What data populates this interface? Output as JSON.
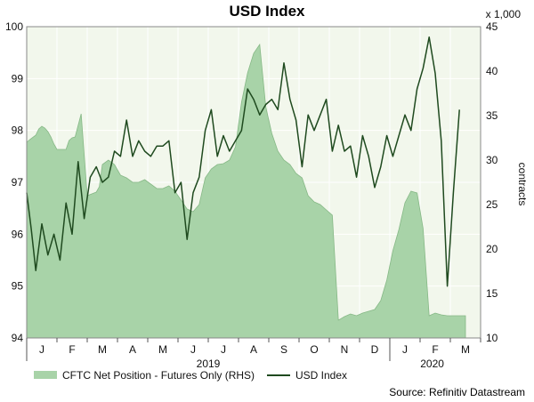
{
  "chart_data": {
    "type": "line",
    "title": "USD Index",
    "y2_multiplier_label": "x 1,000",
    "y2_label": "contracts",
    "x_month_labels": [
      "J",
      "F",
      "M",
      "A",
      "M",
      "J",
      "J",
      "A",
      "S",
      "O",
      "N",
      "D",
      "J",
      "F",
      "M"
    ],
    "x_year_labels": [
      "2019",
      "2020"
    ],
    "ylim_left": [
      94,
      100
    ],
    "yticks_left": [
      94,
      95,
      96,
      97,
      98,
      99,
      100
    ],
    "ylim_right": [
      10,
      45
    ],
    "yticks_right": [
      10,
      15,
      20,
      25,
      30,
      35,
      40,
      45
    ],
    "grid": true,
    "legend_position": "bottom-left",
    "series": [
      {
        "name": "CFTC Net Position - Futures Only (RHS)",
        "type": "area",
        "axis": "right",
        "color": "#a8d3a8",
        "x": [
          0,
          0.1,
          0.3,
          0.4,
          0.5,
          0.6,
          0.7,
          0.8,
          0.9,
          1,
          1.3,
          1.4,
          1.5,
          1.6,
          1.8,
          2,
          2.3,
          2.4,
          2.5,
          2.7,
          2.9,
          3.1,
          3.3,
          3.5,
          3.7,
          3.9,
          4.1,
          4.3,
          4.5,
          4.7,
          4.9,
          5.1,
          5.3,
          5.5,
          5.7,
          5.9,
          6.1,
          6.3,
          6.5,
          6.7,
          6.9,
          7.1,
          7.3,
          7.5,
          7.7,
          7.9,
          8.1,
          8.3,
          8.5,
          8.7,
          8.9,
          9.1,
          9.3,
          9.5,
          9.7,
          9.9,
          10.1,
          10.3,
          10.5,
          10.7,
          10.9,
          11.1,
          11.3,
          11.5,
          11.7,
          11.9,
          12.1,
          12.3,
          12.5,
          12.7,
          12.9,
          13.1,
          13.3,
          13.5,
          13.7,
          13.9,
          14.1,
          14.3,
          14.5
        ],
        "values": [
          32,
          32.3,
          32.8,
          33.5,
          33.8,
          33.6,
          33.2,
          32.6,
          31.8,
          31.2,
          31.2,
          32.2,
          32.5,
          32.6,
          35.2,
          26,
          26.4,
          27,
          29.5,
          30,
          29.5,
          28.3,
          28,
          27.5,
          27.5,
          27.8,
          27.3,
          26.8,
          26.8,
          27.1,
          26.5,
          25.5,
          24.5,
          24.2,
          25,
          28,
          29,
          29.5,
          29.6,
          30,
          31.5,
          36.5,
          39.8,
          42,
          43,
          36,
          33,
          31,
          30,
          29.5,
          28.5,
          28,
          26,
          25.3,
          25,
          24.4,
          23.8,
          12,
          12.4,
          12.7,
          12.5,
          12.8,
          13,
          13.2,
          14.2,
          16.5,
          19.8,
          22.2,
          25.2,
          26.5,
          26.3,
          22.3,
          12.5,
          12.8,
          12.6,
          12.5,
          12.5,
          12.5,
          12.5
        ]
      },
      {
        "name": "USD Index",
        "type": "line",
        "axis": "left",
        "color": "#1f4a1f",
        "x": [
          0,
          0.15,
          0.3,
          0.5,
          0.7,
          0.9,
          1.1,
          1.3,
          1.5,
          1.7,
          1.9,
          2.1,
          2.3,
          2.5,
          2.7,
          2.9,
          3.1,
          3.3,
          3.5,
          3.7,
          3.9,
          4.1,
          4.3,
          4.5,
          4.7,
          4.9,
          5.1,
          5.3,
          5.5,
          5.7,
          5.9,
          6.1,
          6.3,
          6.5,
          6.7,
          6.9,
          7.1,
          7.3,
          7.5,
          7.7,
          7.9,
          8.1,
          8.3,
          8.5,
          8.7,
          8.9,
          9.1,
          9.3,
          9.5,
          9.7,
          9.9,
          10.1,
          10.3,
          10.5,
          10.7,
          10.9,
          11.1,
          11.3,
          11.5,
          11.7,
          11.9,
          12.1,
          12.3,
          12.5,
          12.7,
          12.9,
          13.1,
          13.3,
          13.5,
          13.7,
          13.9,
          14.1,
          14.3
        ],
        "values": [
          96.8,
          96.1,
          95.3,
          96.2,
          95.6,
          96.0,
          95.5,
          96.6,
          96.0,
          97.4,
          96.3,
          97.1,
          97.3,
          97.0,
          97.1,
          97.6,
          97.5,
          98.2,
          97.5,
          97.8,
          97.6,
          97.5,
          97.7,
          97.7,
          97.8,
          96.8,
          97.0,
          95.9,
          96.8,
          97.1,
          98.0,
          98.4,
          97.5,
          97.9,
          97.6,
          97.8,
          98.0,
          98.8,
          98.6,
          98.3,
          98.5,
          98.6,
          98.4,
          99.3,
          98.6,
          98.2,
          97.3,
          98.3,
          98.0,
          98.3,
          98.6,
          97.6,
          98.1,
          97.6,
          97.7,
          97.1,
          97.9,
          97.5,
          96.9,
          97.3,
          97.9,
          97.5,
          97.9,
          98.3,
          98.0,
          98.8,
          99.2,
          99.8,
          99.1,
          97.8,
          95.0,
          96.8,
          98.4
        ]
      }
    ]
  },
  "legend": {
    "area_label": "CFTC Net Position - Futures Only (RHS)",
    "line_label": "USD Index"
  },
  "source": "Source: Refinitiv Datastream"
}
